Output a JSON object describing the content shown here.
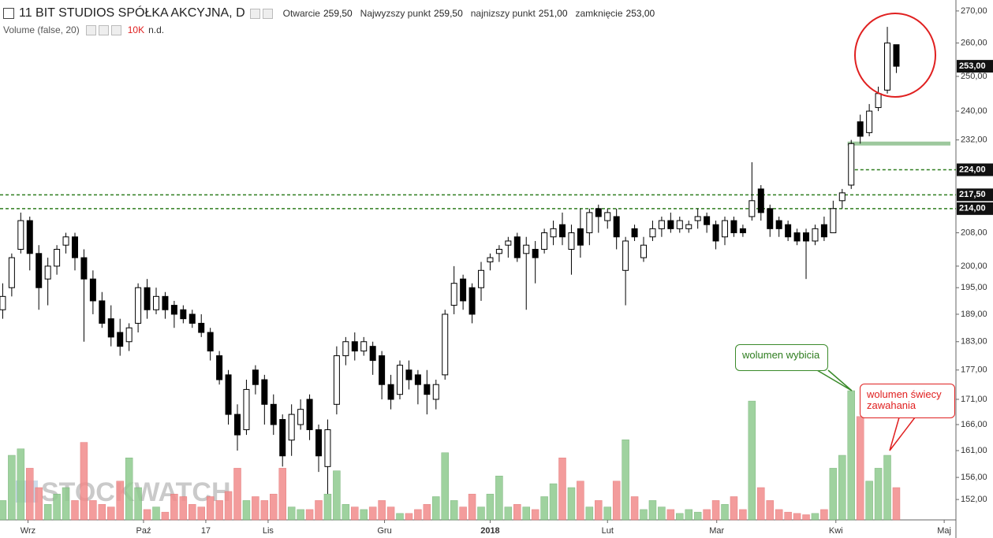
{
  "chart_data": {
    "type": "candlestick",
    "title": "11 BIT STUDIOS SPÓŁKA AKCYJNA, D",
    "header": {
      "items": [
        {
          "label": "Otwarcie",
          "value": "259,50"
        },
        {
          "label": "Najwyzszy punkt",
          "value": "259,50"
        },
        {
          "label": "najnizszy punkt",
          "value": "251,00"
        },
        {
          "label": "zamknięcie",
          "value": "253,00"
        }
      ],
      "volume_title": "Volume (false, 20)",
      "volume_value": "10K",
      "volume_na": "n.d."
    },
    "watermark": "STOCKWATCH",
    "open": [
      190,
      195,
      204,
      211,
      203,
      197,
      200,
      205,
      207,
      202,
      197,
      192,
      188,
      185,
      183,
      187,
      195,
      190,
      193,
      191,
      190,
      189,
      187,
      185,
      180,
      176,
      168,
      165,
      177,
      175,
      170,
      167,
      163,
      166,
      171,
      165,
      158,
      170,
      180,
      183,
      181,
      182,
      180,
      174,
      172,
      177,
      176,
      174,
      171,
      176,
      191,
      197,
      195,
      195,
      201,
      203,
      205,
      207,
      203,
      204,
      204,
      207,
      210,
      204,
      209,
      208,
      214,
      211,
      212,
      199,
      209,
      202,
      207,
      209,
      211,
      209,
      209,
      211,
      212,
      210,
      207,
      211,
      209,
      212,
      219,
      214,
      211,
      210,
      208,
      208,
      206,
      210,
      208,
      216,
      220,
      237,
      234,
      241,
      246,
      259.5
    ],
    "high": [
      196,
      203,
      213,
      212,
      205,
      202,
      205,
      208,
      208,
      204,
      199,
      194,
      191,
      188,
      187,
      196,
      197,
      195,
      194,
      192,
      191,
      190,
      189,
      186,
      181,
      177,
      170,
      175,
      178,
      176,
      172,
      168,
      170,
      171,
      172,
      166,
      167,
      182,
      184,
      185,
      184,
      183,
      181,
      176,
      179,
      179,
      177,
      177,
      175,
      190,
      200,
      198,
      196,
      201,
      203,
      205,
      207,
      208,
      207,
      206,
      209,
      211,
      213,
      210,
      214,
      214,
      215,
      214,
      214,
      207,
      210,
      207,
      211,
      212,
      213,
      212,
      211,
      214,
      213,
      211,
      212,
      212,
      210,
      226,
      220,
      215,
      212,
      211,
      209,
      209,
      210,
      212,
      216,
      219,
      232,
      239,
      242,
      247,
      265,
      259.5
    ],
    "low": [
      188,
      193,
      203,
      199,
      190,
      191,
      198,
      203,
      199,
      183,
      189,
      186,
      182,
      180,
      181,
      185,
      188,
      189,
      188,
      186,
      187,
      186,
      184,
      179,
      174,
      166,
      161,
      164,
      172,
      166,
      164,
      158,
      160,
      165,
      163,
      157,
      153,
      168,
      178,
      179,
      180,
      176,
      171,
      169,
      171,
      173,
      170,
      168,
      169,
      175,
      189,
      190,
      187,
      192,
      199,
      201,
      202,
      201,
      190,
      196,
      203,
      205,
      205,
      198,
      202,
      205,
      208,
      209,
      204,
      191,
      206,
      201,
      206,
      207,
      208,
      208,
      208,
      209,
      208,
      204,
      205,
      207,
      207,
      211,
      211,
      207,
      207,
      206,
      205,
      197,
      205,
      206,
      208,
      214,
      219,
      231,
      233,
      240,
      245,
      251
    ],
    "close": [
      193,
      202,
      211,
      203,
      195,
      200,
      204,
      207,
      202,
      197,
      192,
      187,
      184,
      182,
      186,
      195,
      190,
      193,
      190,
      189,
      188,
      187,
      185,
      181,
      175,
      168,
      164,
      173,
      174,
      170,
      166,
      160,
      168,
      169,
      165,
      160,
      165,
      180,
      183,
      181,
      183,
      179,
      174,
      171,
      178,
      175,
      174,
      172,
      174,
      189,
      196,
      192,
      189,
      199,
      202,
      204,
      206,
      202,
      205,
      202,
      208,
      209,
      207,
      208,
      205,
      213,
      212,
      213,
      207,
      206,
      207,
      205,
      209,
      211,
      209,
      211,
      210,
      212,
      210,
      206,
      211,
      208,
      208,
      216,
      213,
      209,
      209,
      207,
      206,
      206,
      209,
      207,
      214,
      218,
      231,
      233,
      240,
      245,
      260,
      253
    ],
    "volume": [
      15,
      50,
      55,
      40,
      25,
      12,
      20,
      25,
      15,
      60,
      15,
      12,
      10,
      30,
      48,
      25,
      8,
      10,
      6,
      20,
      18,
      12,
      10,
      18,
      15,
      22,
      40,
      15,
      18,
      15,
      20,
      40,
      10,
      8,
      8,
      15,
      20,
      38,
      12,
      10,
      8,
      10,
      15,
      10,
      5,
      5,
      8,
      12,
      18,
      52,
      15,
      10,
      20,
      10,
      20,
      34,
      10,
      12,
      10,
      8,
      18,
      28,
      48,
      25,
      30,
      10,
      15,
      10,
      30,
      62,
      18,
      8,
      15,
      10,
      8,
      5,
      8,
      6,
      8,
      15,
      12,
      18,
      8,
      92,
      25,
      15,
      8,
      6,
      5,
      4,
      5,
      8,
      40,
      50,
      100,
      80,
      30,
      40,
      50,
      25
    ],
    "up_color": "#ffffff",
    "down_color": "#000000",
    "up_volume_color": "#8fcb8f",
    "down_volume_color": "#f28b8b",
    "log_scale": true,
    "ylim": [
      148.4,
      273.5
    ],
    "vlim": [
      0,
      100
    ],
    "xlim": [
      -0.3,
      105.6
    ],
    "yticks": [
      {
        "value": 270,
        "label": "270,00"
      },
      {
        "value": 260,
        "label": "260,00"
      },
      {
        "value": 250,
        "label": "250,00"
      },
      {
        "value": 240,
        "label": "240,00"
      },
      {
        "value": 232,
        "label": "232,00"
      },
      {
        "value": 208,
        "label": "208,00"
      },
      {
        "value": 200,
        "label": "200,00"
      },
      {
        "value": 195,
        "label": "195,00"
      },
      {
        "value": 189,
        "label": "189,00"
      },
      {
        "value": 183,
        "label": "183,00"
      },
      {
        "value": 177,
        "label": "177,00"
      },
      {
        "value": 171,
        "label": "171,00"
      },
      {
        "value": 166,
        "label": "166,00"
      },
      {
        "value": 161,
        "label": "161,00"
      },
      {
        "value": 156,
        "label": "156,00"
      },
      {
        "value": 152,
        "label": "152,00"
      }
    ],
    "xticks": [
      {
        "value": 2.8,
        "label": "Wrz"
      },
      {
        "value": 15.6,
        "label": "Paź"
      },
      {
        "value": 22.5,
        "label": "17"
      },
      {
        "value": 29.4,
        "label": "Lis"
      },
      {
        "value": 42.3,
        "label": "Gru"
      },
      {
        "value": 54,
        "label": "2018"
      },
      {
        "value": 67,
        "label": "Lut"
      },
      {
        "value": 79.1,
        "label": "Mar"
      },
      {
        "value": 92.3,
        "label": "Kwi"
      },
      {
        "value": 104.3,
        "label": "Maj"
      }
    ],
    "last_price": {
      "value": 253,
      "label": "253,00"
    },
    "levels": [
      {
        "value": 224,
        "label": "224,00",
        "x_start": 94.4
      },
      {
        "value": 217.5,
        "label": "217,50",
        "x_start": -0.3
      },
      {
        "value": 214,
        "label": "214,00",
        "x_start": -0.3
      }
    ],
    "support_zone": {
      "value": 231,
      "x_start": 93.6
    },
    "level_color": "#2e7d1f",
    "zone_color": "#9dc89d",
    "annotations": {
      "breakout_volume": "wolumen wybicia",
      "hesitation_volume": "wolumen świecy zawahania"
    }
  }
}
